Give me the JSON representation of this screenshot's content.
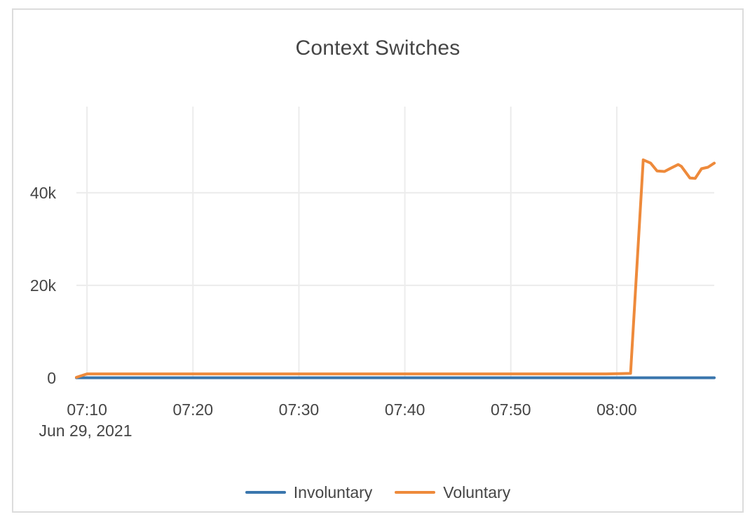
{
  "colors": {
    "background": "#ffffff",
    "card_border": "#dcdcdc",
    "grid": "#ececec",
    "text": "#454545",
    "involuntary": "#3a76ad",
    "voluntary": "#ee8a3b"
  },
  "chart_data": {
    "type": "line",
    "title": "Context Switches",
    "x_axis": {
      "date_label": "Jun 29, 2021",
      "tick_labels": [
        "07:10",
        "07:20",
        "07:30",
        "07:40",
        "07:50",
        "08:00"
      ],
      "tick_minutes": [
        1,
        11,
        21,
        31,
        41,
        51
      ],
      "domain_minutes": [
        0,
        60.2
      ],
      "note": "x values are minutes after 2021-06-29 07:09"
    },
    "y_axis": {
      "tick_labels": [
        "0",
        "20k",
        "40k"
      ],
      "tick_values": [
        0,
        20000,
        40000
      ],
      "domain": [
        0,
        58600
      ],
      "grid": true
    },
    "legend": [
      {
        "label": "Involuntary",
        "color_key": "involuntary"
      },
      {
        "label": "Voluntary",
        "color_key": "voluntary"
      }
    ],
    "series": [
      {
        "name": "Involuntary",
        "color_key": "involuntary",
        "points": [
          [
            0,
            60
          ],
          [
            10,
            60
          ],
          [
            20,
            60
          ],
          [
            30,
            60
          ],
          [
            40,
            60
          ],
          [
            50,
            60
          ],
          [
            60.2,
            60
          ]
        ]
      },
      {
        "name": "Voluntary",
        "color_key": "voluntary",
        "points": [
          [
            0,
            150
          ],
          [
            1,
            900
          ],
          [
            10,
            900
          ],
          [
            20,
            900
          ],
          [
            30,
            900
          ],
          [
            40,
            900
          ],
          [
            50,
            900
          ],
          [
            52.3,
            1000
          ],
          [
            53.5,
            47100
          ],
          [
            54.2,
            46400
          ],
          [
            54.8,
            44700
          ],
          [
            55.5,
            44600
          ],
          [
            56.1,
            45300
          ],
          [
            56.8,
            46100
          ],
          [
            57.1,
            45700
          ],
          [
            57.9,
            43200
          ],
          [
            58.4,
            43100
          ],
          [
            59,
            45200
          ],
          [
            59.6,
            45500
          ],
          [
            60.2,
            46400
          ]
        ]
      }
    ]
  }
}
